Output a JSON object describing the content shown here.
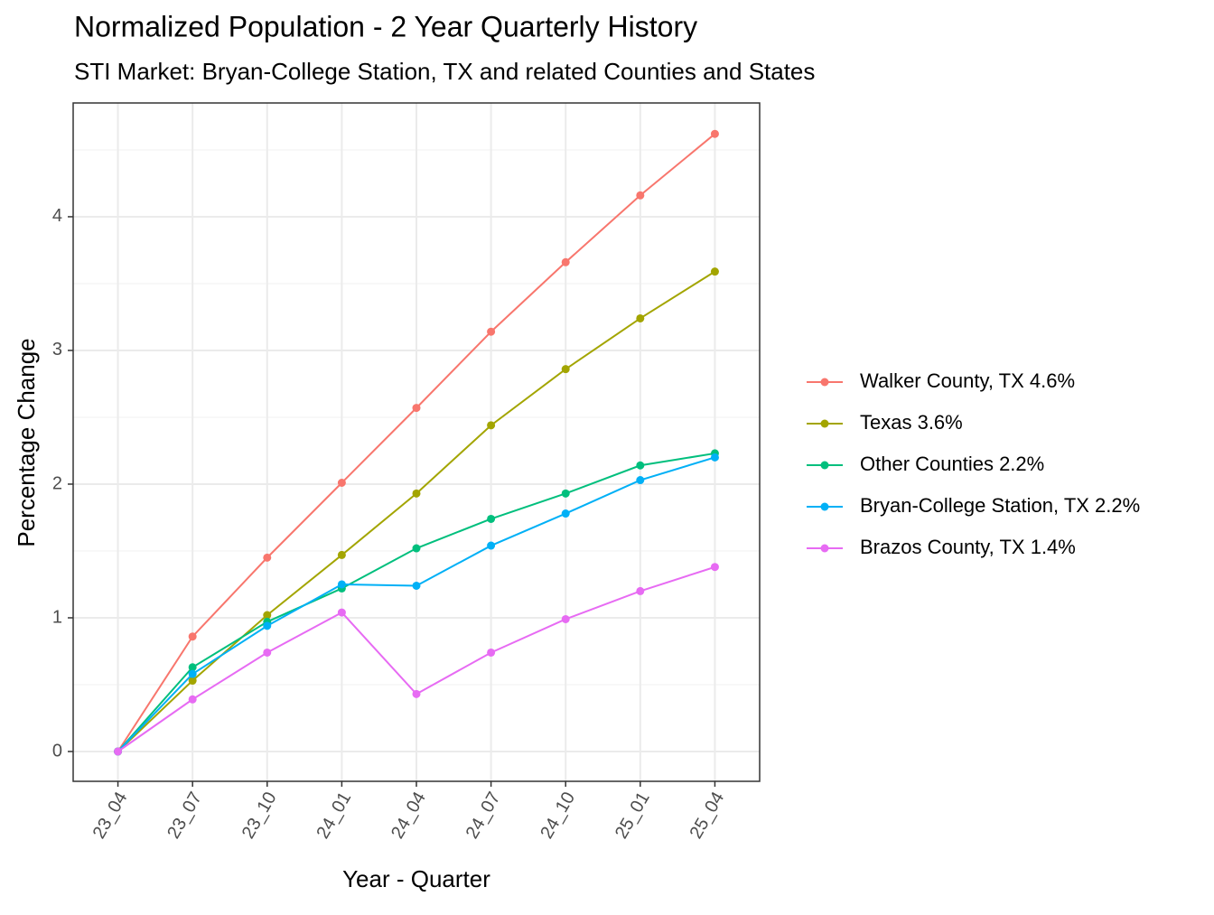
{
  "chart_data": {
    "type": "line",
    "title": "Normalized Population - 2 Year Quarterly History",
    "subtitle": "STI Market: Bryan-College Station, TX and related Counties and States",
    "x_label": "Year - Quarter",
    "y_label": "Percentage Change",
    "categories": [
      "23_04",
      "23_07",
      "23_10",
      "24_01",
      "24_04",
      "24_07",
      "24_10",
      "25_01",
      "25_04"
    ],
    "series": [
      {
        "name": "Walker County, TX 4.6%",
        "color": "#F8766D",
        "values": [
          0,
          0.86,
          1.45,
          2.01,
          2.57,
          3.14,
          3.66,
          4.16,
          4.62
        ]
      },
      {
        "name": "Texas 3.6%",
        "color": "#A3A500",
        "values": [
          0,
          0.53,
          1.02,
          1.47,
          1.93,
          2.44,
          2.86,
          3.24,
          3.59
        ]
      },
      {
        "name": "Other Counties 2.2%",
        "color": "#00BF7D",
        "values": [
          0,
          0.63,
          0.97,
          1.22,
          1.52,
          1.74,
          1.93,
          2.14,
          2.23
        ]
      },
      {
        "name": "Bryan-College Station, TX 2.2%",
        "color": "#00B0F6",
        "values": [
          0,
          0.58,
          0.94,
          1.25,
          1.24,
          1.54,
          1.78,
          2.03,
          2.2
        ]
      },
      {
        "name": "Brazos County, TX 1.4%",
        "color": "#E76BF3",
        "values": [
          0,
          0.39,
          0.74,
          1.04,
          0.43,
          0.74,
          0.99,
          1.2,
          1.38
        ]
      }
    ],
    "ylim": [
      -0.223,
      4.851
    ],
    "yticks": [
      0,
      1,
      2,
      3,
      4
    ],
    "grid": true,
    "legend": "right"
  }
}
